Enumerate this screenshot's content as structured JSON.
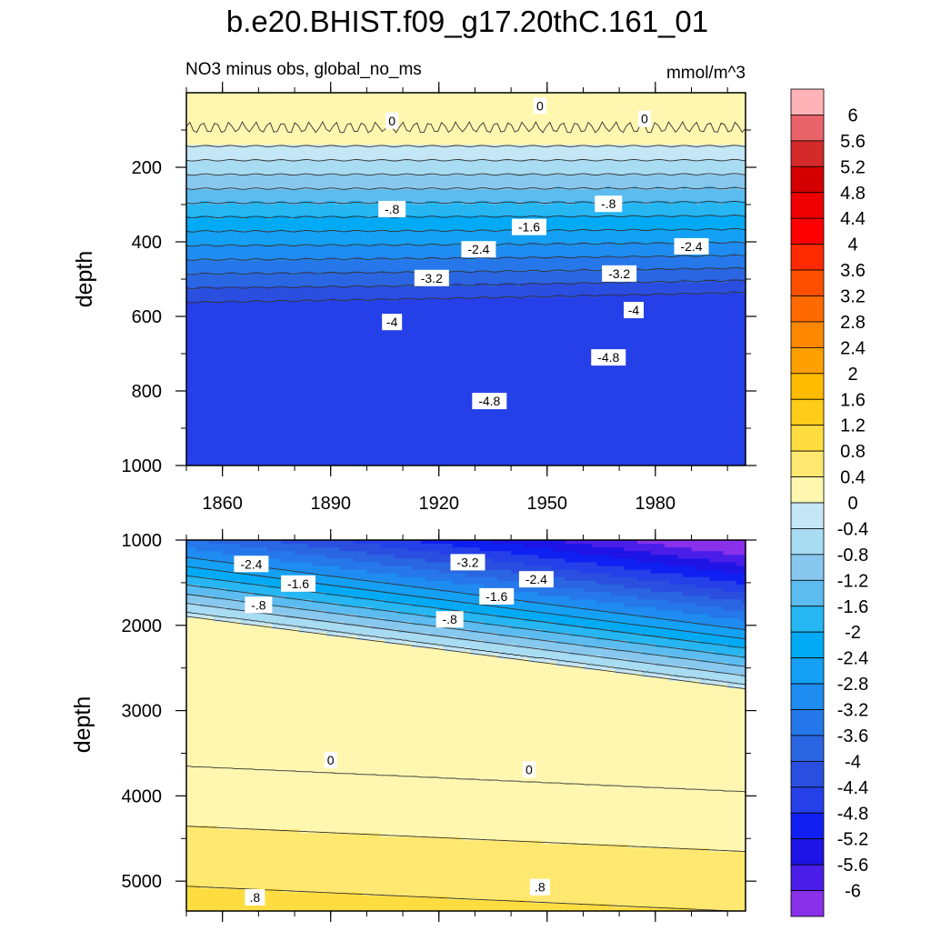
{
  "chart_data": {
    "type": "contour",
    "title": "b.e20.BHIST.f09_g17.20thC.161_01",
    "subtitle_left": "NO3 minus obs, global_no_ms",
    "units": "mmol/m^3",
    "xlabel": "",
    "xticks": [
      "1860",
      "1890",
      "1920",
      "1950",
      "1980"
    ],
    "xlim": [
      1850,
      2005
    ],
    "upper_panel": {
      "ylabel": "depth",
      "ylim": [
        1000,
        0
      ],
      "yticks": [
        "200",
        "400",
        "600",
        "800",
        "1000"
      ],
      "contour_labels": [
        {
          "text": "0",
          "x": 1907,
          "depth": 75
        },
        {
          "text": "0",
          "x": 1948,
          "depth": 35
        },
        {
          "text": "0",
          "x": 1977,
          "depth": 70
        },
        {
          "text": "-.8",
          "x": 1907,
          "depth": 312
        },
        {
          "text": "-.8",
          "x": 1967,
          "depth": 298
        },
        {
          "text": "-1.6",
          "x": 1945,
          "depth": 360
        },
        {
          "text": "-2.4",
          "x": 1931,
          "depth": 420
        },
        {
          "text": "-2.4",
          "x": 1990,
          "depth": 412
        },
        {
          "text": "-3.2",
          "x": 1918,
          "depth": 497
        },
        {
          "text": "-3.2",
          "x": 1970,
          "depth": 485
        },
        {
          "text": "-4",
          "x": 1907,
          "depth": 615
        },
        {
          "text": "-4",
          "x": 1974,
          "depth": 583
        },
        {
          "text": "-4.8",
          "x": 1967,
          "depth": 710
        },
        {
          "text": "-4.8",
          "x": 1934,
          "depth": 827
        }
      ]
    },
    "lower_panel": {
      "ylabel": "depth",
      "ylim": [
        5350,
        1000
      ],
      "yticks": [
        "1000",
        "2000",
        "3000",
        "4000",
        "5000"
      ],
      "contour_labels": [
        {
          "text": "-2.4",
          "x": 1868,
          "depth": 1280
        },
        {
          "text": "-3.2",
          "x": 1928,
          "depth": 1260
        },
        {
          "text": "-1.6",
          "x": 1881,
          "depth": 1510
        },
        {
          "text": "-2.4",
          "x": 1947,
          "depth": 1460
        },
        {
          "text": "-1.6",
          "x": 1936,
          "depth": 1660
        },
        {
          "text": "-.8",
          "x": 1870,
          "depth": 1760
        },
        {
          "text": "-.8",
          "x": 1923,
          "depth": 1930
        },
        {
          "text": "0",
          "x": 1890,
          "depth": 3580
        },
        {
          "text": "0",
          "x": 1945,
          "depth": 3690
        },
        {
          "text": ".8",
          "x": 1869,
          "depth": 5190
        },
        {
          "text": ".8",
          "x": 1948,
          "depth": 5070
        }
      ]
    },
    "colorbar": {
      "labels": [
        "6",
        "5.6",
        "5.2",
        "4.8",
        "4.4",
        "4",
        "3.6",
        "3.2",
        "2.8",
        "2.4",
        "2",
        "1.6",
        "1.2",
        "0.8",
        "0.4",
        "0",
        "-0.4",
        "-0.8",
        "-1.2",
        "-1.6",
        "-2",
        "-2.4",
        "-2.8",
        "-3.2",
        "-3.6",
        "-4",
        "-4.4",
        "-4.8",
        "-5.2",
        "-5.6",
        "-6"
      ],
      "colors": [
        "#ffb3b6",
        "#e8636a",
        "#d42a2a",
        "#d40000",
        "#ee0000",
        "#ff0000",
        "#ff2a00",
        "#ff5000",
        "#ff6a00",
        "#ff8800",
        "#ffa000",
        "#ffbb00",
        "#ffcc1a",
        "#ffdd40",
        "#ffe870",
        "#fff7b0",
        "#c4e6f6",
        "#a8dcf3",
        "#88c8ee",
        "#5cbcf0",
        "#26b6f2",
        "#00aaf5",
        "#14a0f4",
        "#1e8cf0",
        "#2678ea",
        "#2a66e2",
        "#2a4fe0",
        "#2540e8",
        "#1020f2",
        "#1e14e6",
        "#4a1ee8",
        "#8830ea"
      ]
    }
  }
}
